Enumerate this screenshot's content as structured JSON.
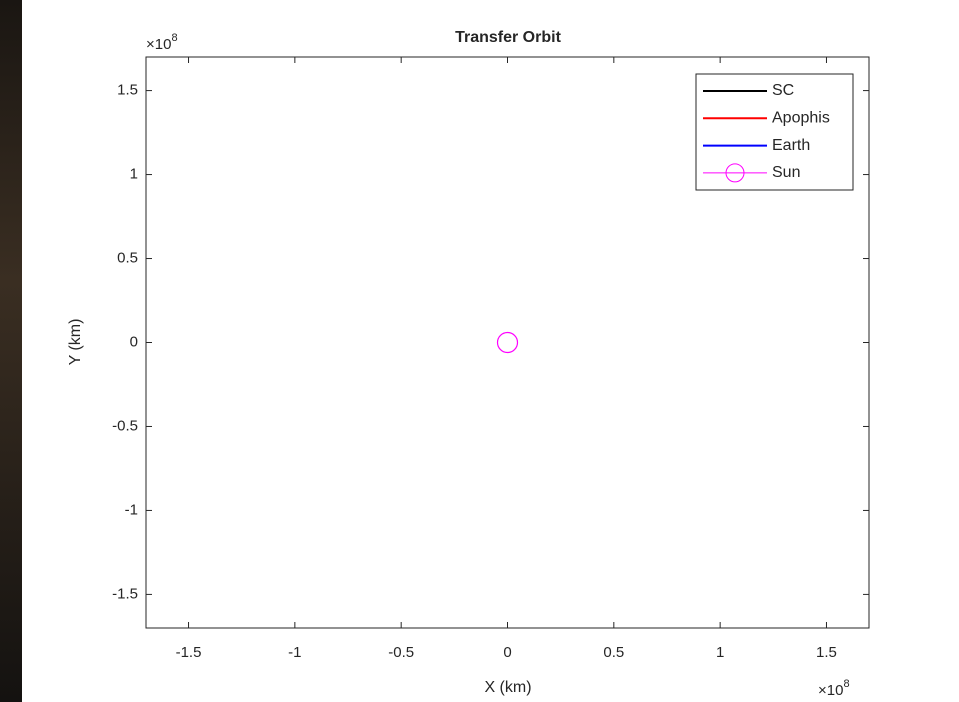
{
  "chart_data": {
    "type": "line",
    "title": "Transfer Orbit",
    "x_label": "X (km)",
    "y_label": "Y (km)",
    "x_multiplier": {
      "base": "×10",
      "power": "8"
    },
    "y_multiplier": {
      "base": "×10",
      "power": "8"
    },
    "xlim": [
      -1.7,
      1.7
    ],
    "ylim": [
      -1.7,
      1.7
    ],
    "xticks": [
      -1.5,
      -1,
      -0.5,
      0,
      0.5,
      1,
      1.5
    ],
    "yticks": [
      -1.5,
      -1,
      -0.5,
      0,
      0.5,
      1,
      1.5
    ],
    "grid": false,
    "legend_position": "upper-right",
    "series": [
      {
        "name": "SC",
        "color": "#000000",
        "x": [],
        "values": []
      },
      {
        "name": "Apophis",
        "color": "#ff0000",
        "x": [],
        "values": []
      },
      {
        "name": "Earth",
        "color": "#0000ff",
        "x": [],
        "values": []
      },
      {
        "name": "Sun",
        "color": "#ff00ff",
        "marker": "circle",
        "x": [
          0
        ],
        "values": [
          0
        ]
      }
    ]
  }
}
